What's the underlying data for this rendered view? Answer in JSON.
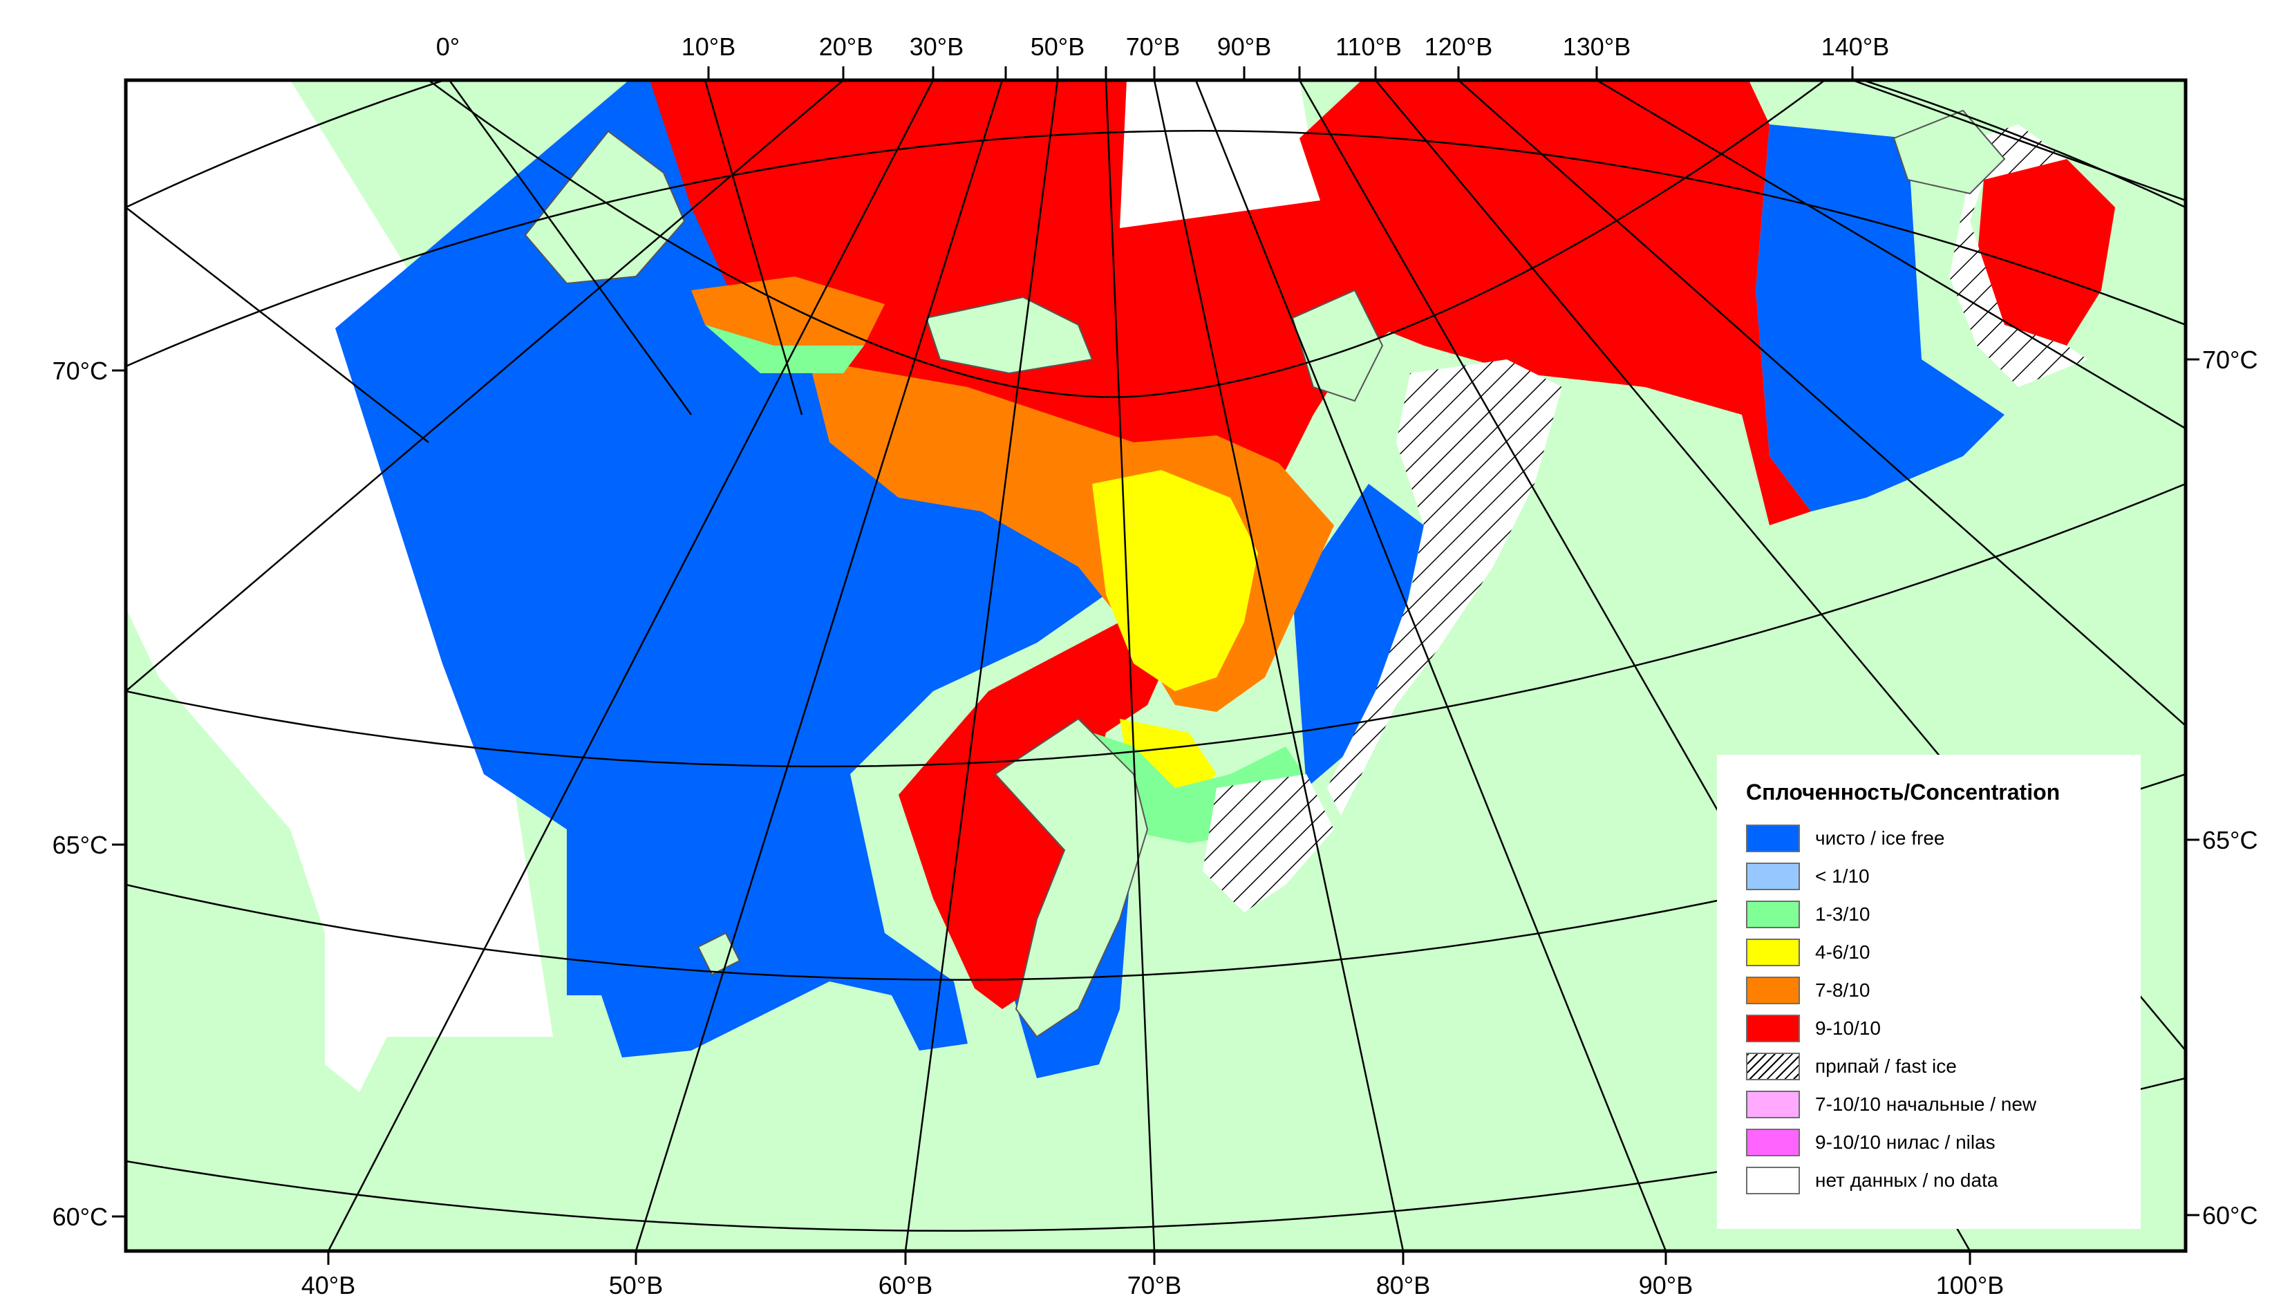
{
  "map": {
    "top_lon_labels": [
      "0°",
      "10°В",
      "20°В",
      "30°В",
      "50°В",
      "70°В",
      "90°В",
      "110°В",
      "120°В",
      "130°В",
      "140°В"
    ],
    "bottom_lon_labels": [
      "40°В",
      "50°В",
      "60°В",
      "70°В",
      "80°В",
      "90°В",
      "100°В"
    ],
    "left_lat_labels": [
      "70°С",
      "65°С",
      "60°С"
    ],
    "right_lat_labels": [
      "70°С",
      "65°С",
      "60°С"
    ],
    "colors": {
      "land": "#ccffcc",
      "water_ice_free": "#0064ff",
      "no_data": "#ffffff",
      "grid": "#000000",
      "frame": "#000000"
    }
  },
  "legend": {
    "title": "Сплоченность/Concentration",
    "items": [
      {
        "label": "чисто / ice free",
        "color": "#0064ff",
        "pattern": ""
      },
      {
        "label": "< 1/10",
        "color": "#96c8ff",
        "pattern": ""
      },
      {
        "label": "1-3/10",
        "color": "#80ff96",
        "pattern": ""
      },
      {
        "label": "4-6/10",
        "color": "#ffff00",
        "pattern": ""
      },
      {
        "label": "7-8/10",
        "color": "#ff8000",
        "pattern": ""
      },
      {
        "label": "9-10/10",
        "color": "#ff0000",
        "pattern": ""
      },
      {
        "label": "припай / fast ice",
        "color": "#ffffff",
        "pattern": "hatch"
      },
      {
        "label": "7-10/10 начальные / new",
        "color": "#ffaaff",
        "pattern": ""
      },
      {
        "label": "9-10/10 нилас / nilas",
        "color": "#ff64ff",
        "pattern": ""
      },
      {
        "label": "нет данных / no data",
        "color": "#ffffff",
        "pattern": ""
      }
    ]
  }
}
